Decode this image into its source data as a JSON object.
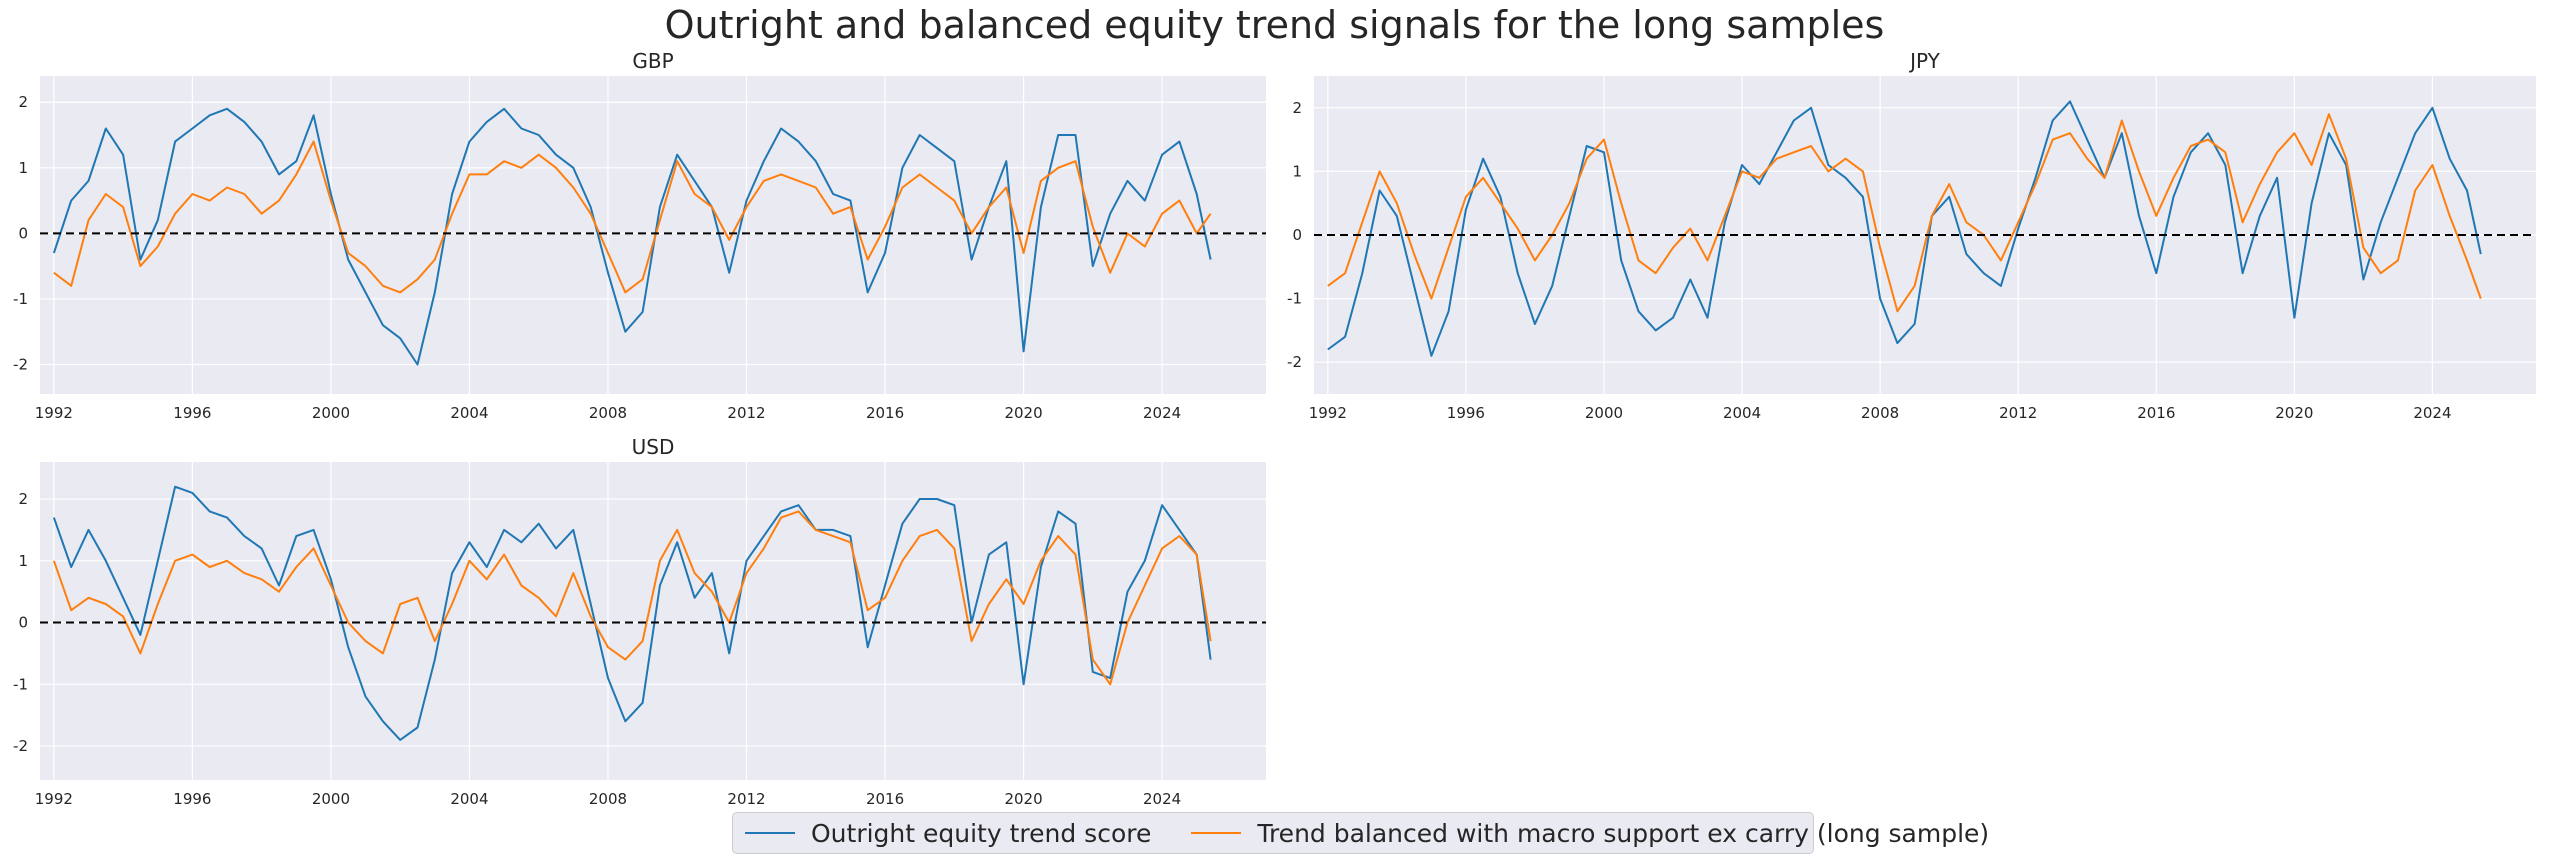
{
  "title": "Outright and balanced equity trend signals for the long samples",
  "colors": {
    "outright": "#1f77b4",
    "balanced": "#ff7f0e",
    "panel_bg": "#eaeaf2",
    "grid": "#ffffff",
    "zero_line": "#000000"
  },
  "legend": {
    "outright": "Outright equity trend score",
    "balanced": "Trend balanced with macro support ex carry (long sample)"
  },
  "chart_data": [
    {
      "type": "line",
      "title": "GBP",
      "xlim": [
        1991.6,
        2027.0
      ],
      "ylim": [
        -2.45,
        2.4
      ],
      "x_ticks": [
        1992,
        1996,
        2000,
        2004,
        2008,
        2012,
        2016,
        2020,
        2024
      ],
      "y_ticks": [
        -2,
        -1,
        0,
        1,
        2
      ],
      "zero_line": true,
      "grid": true,
      "series": [
        {
          "name": "Outright equity trend score",
          "color": "#1f77b4",
          "x": [
            1992.0,
            1992.5,
            1993.0,
            1993.5,
            1994.0,
            1994.5,
            1995.0,
            1995.5,
            1996.0,
            1996.5,
            1997.0,
            1997.5,
            1998.0,
            1998.5,
            1999.0,
            1999.5,
            2000.0,
            2000.5,
            2001.0,
            2001.5,
            2002.0,
            2002.5,
            2003.0,
            2003.5,
            2004.0,
            2004.5,
            2005.0,
            2005.5,
            2006.0,
            2006.5,
            2007.0,
            2007.5,
            2008.0,
            2008.5,
            2009.0,
            2009.5,
            2010.0,
            2010.5,
            2011.0,
            2011.5,
            2012.0,
            2012.5,
            2013.0,
            2013.5,
            2014.0,
            2014.5,
            2015.0,
            2015.5,
            2016.0,
            2016.5,
            2017.0,
            2017.5,
            2018.0,
            2018.5,
            2019.0,
            2019.5,
            2020.0,
            2020.5,
            2021.0,
            2021.5,
            2022.0,
            2022.5,
            2023.0,
            2023.5,
            2024.0,
            2024.5,
            2025.0,
            2025.4
          ],
          "y": [
            -0.3,
            0.5,
            0.8,
            1.6,
            1.2,
            -0.4,
            0.2,
            1.4,
            1.6,
            1.8,
            1.9,
            1.7,
            1.4,
            0.9,
            1.1,
            1.8,
            0.6,
            -0.4,
            -0.9,
            -1.4,
            -1.6,
            -2.0,
            -0.9,
            0.6,
            1.4,
            1.7,
            1.9,
            1.6,
            1.5,
            1.2,
            1.0,
            0.4,
            -0.6,
            -1.5,
            -1.2,
            0.4,
            1.2,
            0.8,
            0.4,
            -0.6,
            0.5,
            1.1,
            1.6,
            1.4,
            1.1,
            0.6,
            0.5,
            -0.9,
            -0.3,
            1.0,
            1.5,
            1.3,
            1.1,
            -0.4,
            0.4,
            1.1,
            -1.8,
            0.4,
            1.5,
            1.5,
            -0.5,
            0.3,
            0.8,
            0.5,
            1.2,
            1.4,
            0.6,
            -0.4
          ]
        },
        {
          "name": "Trend balanced with macro support ex carry (long sample)",
          "color": "#ff7f0e",
          "x": [
            1992.0,
            1992.5,
            1993.0,
            1993.5,
            1994.0,
            1994.5,
            1995.0,
            1995.5,
            1996.0,
            1996.5,
            1997.0,
            1997.5,
            1998.0,
            1998.5,
            1999.0,
            1999.5,
            2000.0,
            2000.5,
            2001.0,
            2001.5,
            2002.0,
            2002.5,
            2003.0,
            2003.5,
            2004.0,
            2004.5,
            2005.0,
            2005.5,
            2006.0,
            2006.5,
            2007.0,
            2007.5,
            2008.0,
            2008.5,
            2009.0,
            2009.5,
            2010.0,
            2010.5,
            2011.0,
            2011.5,
            2012.0,
            2012.5,
            2013.0,
            2013.5,
            2014.0,
            2014.5,
            2015.0,
            2015.5,
            2016.0,
            2016.5,
            2017.0,
            2017.5,
            2018.0,
            2018.5,
            2019.0,
            2019.5,
            2020.0,
            2020.5,
            2021.0,
            2021.5,
            2022.0,
            2022.5,
            2023.0,
            2023.5,
            2024.0,
            2024.5,
            2025.0,
            2025.4
          ],
          "y": [
            -0.6,
            -0.8,
            0.2,
            0.6,
            0.4,
            -0.5,
            -0.2,
            0.3,
            0.6,
            0.5,
            0.7,
            0.6,
            0.3,
            0.5,
            0.9,
            1.4,
            0.5,
            -0.3,
            -0.5,
            -0.8,
            -0.9,
            -0.7,
            -0.4,
            0.3,
            0.9,
            0.9,
            1.1,
            1.0,
            1.2,
            1.0,
            0.7,
            0.3,
            -0.3,
            -0.9,
            -0.7,
            0.2,
            1.1,
            0.6,
            0.4,
            -0.1,
            0.4,
            0.8,
            0.9,
            0.8,
            0.7,
            0.3,
            0.4,
            -0.4,
            0.1,
            0.7,
            0.9,
            0.7,
            0.5,
            0.0,
            0.4,
            0.7,
            -0.3,
            0.8,
            1.0,
            1.1,
            0.1,
            -0.6,
            0.0,
            -0.2,
            0.3,
            0.5,
            0.0,
            0.3
          ]
        }
      ]
    },
    {
      "type": "line",
      "title": "JPY",
      "xlim": [
        1991.6,
        2027.0
      ],
      "ylim": [
        -2.5,
        2.5
      ],
      "x_ticks": [
        1992,
        1996,
        2000,
        2004,
        2008,
        2012,
        2016,
        2020,
        2024
      ],
      "y_ticks": [
        -2,
        -1,
        0,
        1,
        2
      ],
      "zero_line": true,
      "grid": true,
      "series": [
        {
          "name": "Outright equity trend score",
          "color": "#1f77b4",
          "x": [
            1992.0,
            1992.5,
            1993.0,
            1993.5,
            1994.0,
            1994.5,
            1995.0,
            1995.5,
            1996.0,
            1996.5,
            1997.0,
            1997.5,
            1998.0,
            1998.5,
            1999.0,
            1999.5,
            2000.0,
            2000.5,
            2001.0,
            2001.5,
            2002.0,
            2002.5,
            2003.0,
            2003.5,
            2004.0,
            2004.5,
            2005.0,
            2005.5,
            2006.0,
            2006.5,
            2007.0,
            2007.5,
            2008.0,
            2008.5,
            2009.0,
            2009.5,
            2010.0,
            2010.5,
            2011.0,
            2011.5,
            2012.0,
            2012.5,
            2013.0,
            2013.5,
            2014.0,
            2014.5,
            2015.0,
            2015.5,
            2016.0,
            2016.5,
            2017.0,
            2017.5,
            2018.0,
            2018.5,
            2019.0,
            2019.5,
            2020.0,
            2020.5,
            2021.0,
            2021.5,
            2022.0,
            2022.5,
            2023.0,
            2023.5,
            2024.0,
            2024.5,
            2025.0,
            2025.4
          ],
          "y": [
            -1.8,
            -1.6,
            -0.6,
            0.7,
            0.3,
            -0.8,
            -1.9,
            -1.2,
            0.4,
            1.2,
            0.6,
            -0.6,
            -1.4,
            -0.8,
            0.3,
            1.4,
            1.3,
            -0.4,
            -1.2,
            -1.5,
            -1.3,
            -0.7,
            -1.3,
            0.2,
            1.1,
            0.8,
            1.3,
            1.8,
            2.0,
            1.1,
            0.9,
            0.6,
            -1.0,
            -1.7,
            -1.4,
            0.3,
            0.6,
            -0.3,
            -0.6,
            -0.8,
            0.1,
            0.9,
            1.8,
            2.1,
            1.5,
            0.9,
            1.6,
            0.3,
            -0.6,
            0.6,
            1.3,
            1.6,
            1.1,
            -0.6,
            0.3,
            0.9,
            -1.3,
            0.5,
            1.6,
            1.1,
            -0.7,
            0.2,
            0.9,
            1.6,
            2.0,
            1.2,
            0.7,
            -0.3
          ]
        },
        {
          "name": "Trend balanced with macro support ex carry (long sample)",
          "color": "#ff7f0e",
          "x": [
            1992.0,
            1992.5,
            1993.0,
            1993.5,
            1994.0,
            1994.5,
            1995.0,
            1995.5,
            1996.0,
            1996.5,
            1997.0,
            1997.5,
            1998.0,
            1998.5,
            1999.0,
            1999.5,
            2000.0,
            2000.5,
            2001.0,
            2001.5,
            2002.0,
            2002.5,
            2003.0,
            2003.5,
            2004.0,
            2004.5,
            2005.0,
            2005.5,
            2006.0,
            2006.5,
            2007.0,
            2007.5,
            2008.0,
            2008.5,
            2009.0,
            2009.5,
            2010.0,
            2010.5,
            2011.0,
            2011.5,
            2012.0,
            2012.5,
            2013.0,
            2013.5,
            2014.0,
            2014.5,
            2015.0,
            2015.5,
            2016.0,
            2016.5,
            2017.0,
            2017.5,
            2018.0,
            2018.5,
            2019.0,
            2019.5,
            2020.0,
            2020.5,
            2021.0,
            2021.5,
            2022.0,
            2022.5,
            2023.0,
            2023.5,
            2024.0,
            2024.5,
            2025.0,
            2025.4
          ],
          "y": [
            -0.8,
            -0.6,
            0.2,
            1.0,
            0.5,
            -0.3,
            -1.0,
            -0.2,
            0.6,
            0.9,
            0.5,
            0.1,
            -0.4,
            0.0,
            0.5,
            1.2,
            1.5,
            0.5,
            -0.4,
            -0.6,
            -0.2,
            0.1,
            -0.4,
            0.3,
            1.0,
            0.9,
            1.2,
            1.3,
            1.4,
            1.0,
            1.2,
            1.0,
            -0.2,
            -1.2,
            -0.8,
            0.3,
            0.8,
            0.2,
            0.0,
            -0.4,
            0.2,
            0.8,
            1.5,
            1.6,
            1.2,
            0.9,
            1.8,
            1.0,
            0.3,
            0.9,
            1.4,
            1.5,
            1.3,
            0.2,
            0.8,
            1.3,
            1.6,
            1.1,
            1.9,
            1.2,
            -0.2,
            -0.6,
            -0.4,
            0.7,
            1.1,
            0.3,
            -0.4,
            -1.0
          ]
        }
      ]
    },
    {
      "type": "line",
      "title": "USD",
      "xlim": [
        1991.6,
        2027.0
      ],
      "ylim": [
        -2.55,
        2.6
      ],
      "x_ticks": [
        1992,
        1996,
        2000,
        2004,
        2008,
        2012,
        2016,
        2020,
        2024
      ],
      "y_ticks": [
        -2,
        -1,
        0,
        1,
        2
      ],
      "zero_line": true,
      "grid": true,
      "series": [
        {
          "name": "Outright equity trend score",
          "color": "#1f77b4",
          "x": [
            1992.0,
            1992.5,
            1993.0,
            1993.5,
            1994.0,
            1994.5,
            1995.0,
            1995.5,
            1996.0,
            1996.5,
            1997.0,
            1997.5,
            1998.0,
            1998.5,
            1999.0,
            1999.5,
            2000.0,
            2000.5,
            2001.0,
            2001.5,
            2002.0,
            2002.5,
            2003.0,
            2003.5,
            2004.0,
            2004.5,
            2005.0,
            2005.5,
            2006.0,
            2006.5,
            2007.0,
            2007.5,
            2008.0,
            2008.5,
            2009.0,
            2009.5,
            2010.0,
            2010.5,
            2011.0,
            2011.5,
            2012.0,
            2012.5,
            2013.0,
            2013.5,
            2014.0,
            2014.5,
            2015.0,
            2015.5,
            2016.0,
            2016.5,
            2017.0,
            2017.5,
            2018.0,
            2018.5,
            2019.0,
            2019.5,
            2020.0,
            2020.5,
            2021.0,
            2021.5,
            2022.0,
            2022.5,
            2023.0,
            2023.5,
            2024.0,
            2024.5,
            2025.0,
            2025.4
          ],
          "y": [
            1.7,
            0.9,
            1.5,
            1.0,
            0.4,
            -0.2,
            1.0,
            2.2,
            2.1,
            1.8,
            1.7,
            1.4,
            1.2,
            0.6,
            1.4,
            1.5,
            0.7,
            -0.4,
            -1.2,
            -1.6,
            -1.9,
            -1.7,
            -0.6,
            0.8,
            1.3,
            0.9,
            1.5,
            1.3,
            1.6,
            1.2,
            1.5,
            0.3,
            -0.9,
            -1.6,
            -1.3,
            0.6,
            1.3,
            0.4,
            0.8,
            -0.5,
            1.0,
            1.4,
            1.8,
            1.9,
            1.5,
            1.5,
            1.4,
            -0.4,
            0.6,
            1.6,
            2.0,
            2.0,
            1.9,
            0.0,
            1.1,
            1.3,
            -1.0,
            0.9,
            1.8,
            1.6,
            -0.8,
            -0.9,
            0.5,
            1.0,
            1.9,
            1.5,
            1.1,
            -0.6
          ]
        },
        {
          "name": "Trend balanced with macro support ex carry (long sample)",
          "color": "#ff7f0e",
          "x": [
            1992.0,
            1992.5,
            1993.0,
            1993.5,
            1994.0,
            1994.5,
            1995.0,
            1995.5,
            1996.0,
            1996.5,
            1997.0,
            1997.5,
            1998.0,
            1998.5,
            1999.0,
            1999.5,
            2000.0,
            2000.5,
            2001.0,
            2001.5,
            2002.0,
            2002.5,
            2003.0,
            2003.5,
            2004.0,
            2004.5,
            2005.0,
            2005.5,
            2006.0,
            2006.5,
            2007.0,
            2007.5,
            2008.0,
            2008.5,
            2009.0,
            2009.5,
            2010.0,
            2010.5,
            2011.0,
            2011.5,
            2012.0,
            2012.5,
            2013.0,
            2013.5,
            2014.0,
            2014.5,
            2015.0,
            2015.5,
            2016.0,
            2016.5,
            2017.0,
            2017.5,
            2018.0,
            2018.5,
            2019.0,
            2019.5,
            2020.0,
            2020.5,
            2021.0,
            2021.5,
            2022.0,
            2022.5,
            2023.0,
            2023.5,
            2024.0,
            2024.5,
            2025.0,
            2025.4
          ],
          "y": [
            1.0,
            0.2,
            0.4,
            0.3,
            0.1,
            -0.5,
            0.3,
            1.0,
            1.1,
            0.9,
            1.0,
            0.8,
            0.7,
            0.5,
            0.9,
            1.2,
            0.6,
            0.0,
            -0.3,
            -0.5,
            0.3,
            0.4,
            -0.3,
            0.3,
            1.0,
            0.7,
            1.1,
            0.6,
            0.4,
            0.1,
            0.8,
            0.1,
            -0.4,
            -0.6,
            -0.3,
            1.0,
            1.5,
            0.8,
            0.5,
            0.0,
            0.8,
            1.2,
            1.7,
            1.8,
            1.5,
            1.4,
            1.3,
            0.2,
            0.4,
            1.0,
            1.4,
            1.5,
            1.2,
            -0.3,
            0.3,
            0.7,
            0.3,
            1.0,
            1.4,
            1.1,
            -0.6,
            -1.0,
            0.0,
            0.6,
            1.2,
            1.4,
            1.1,
            -0.3
          ]
        }
      ]
    }
  ]
}
